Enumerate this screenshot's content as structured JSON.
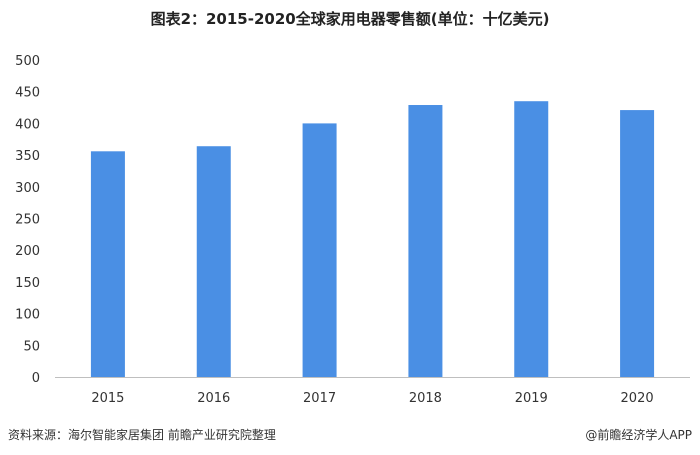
{
  "title": "图表2：2015-2020全球家用电器零售额(单位：十亿美元)",
  "source": "资料来源：海尔智能家居集团 前瞻产业研究院整理",
  "brand": "@前瞻经济学人APP",
  "colors": {
    "bar": "#4a8fe4",
    "axis": "#bfbfbf"
  },
  "chart_data": {
    "type": "bar",
    "title": "图表2：2015-2020全球家用电器零售额(单位：十亿美元)",
    "categories": [
      "2015",
      "2016",
      "2017",
      "2018",
      "2019",
      "2020"
    ],
    "values": [
      356,
      364,
      400,
      429,
      435,
      421
    ],
    "ylim": [
      0,
      500
    ],
    "yticks": [
      0,
      50,
      100,
      150,
      200,
      250,
      300,
      350,
      400,
      450,
      500
    ],
    "ytick_labels": [
      "0",
      "50",
      "100",
      "150",
      "200",
      "250",
      "300",
      "350",
      "400",
      "450",
      "500"
    ],
    "grid": false,
    "legend": "none"
  }
}
